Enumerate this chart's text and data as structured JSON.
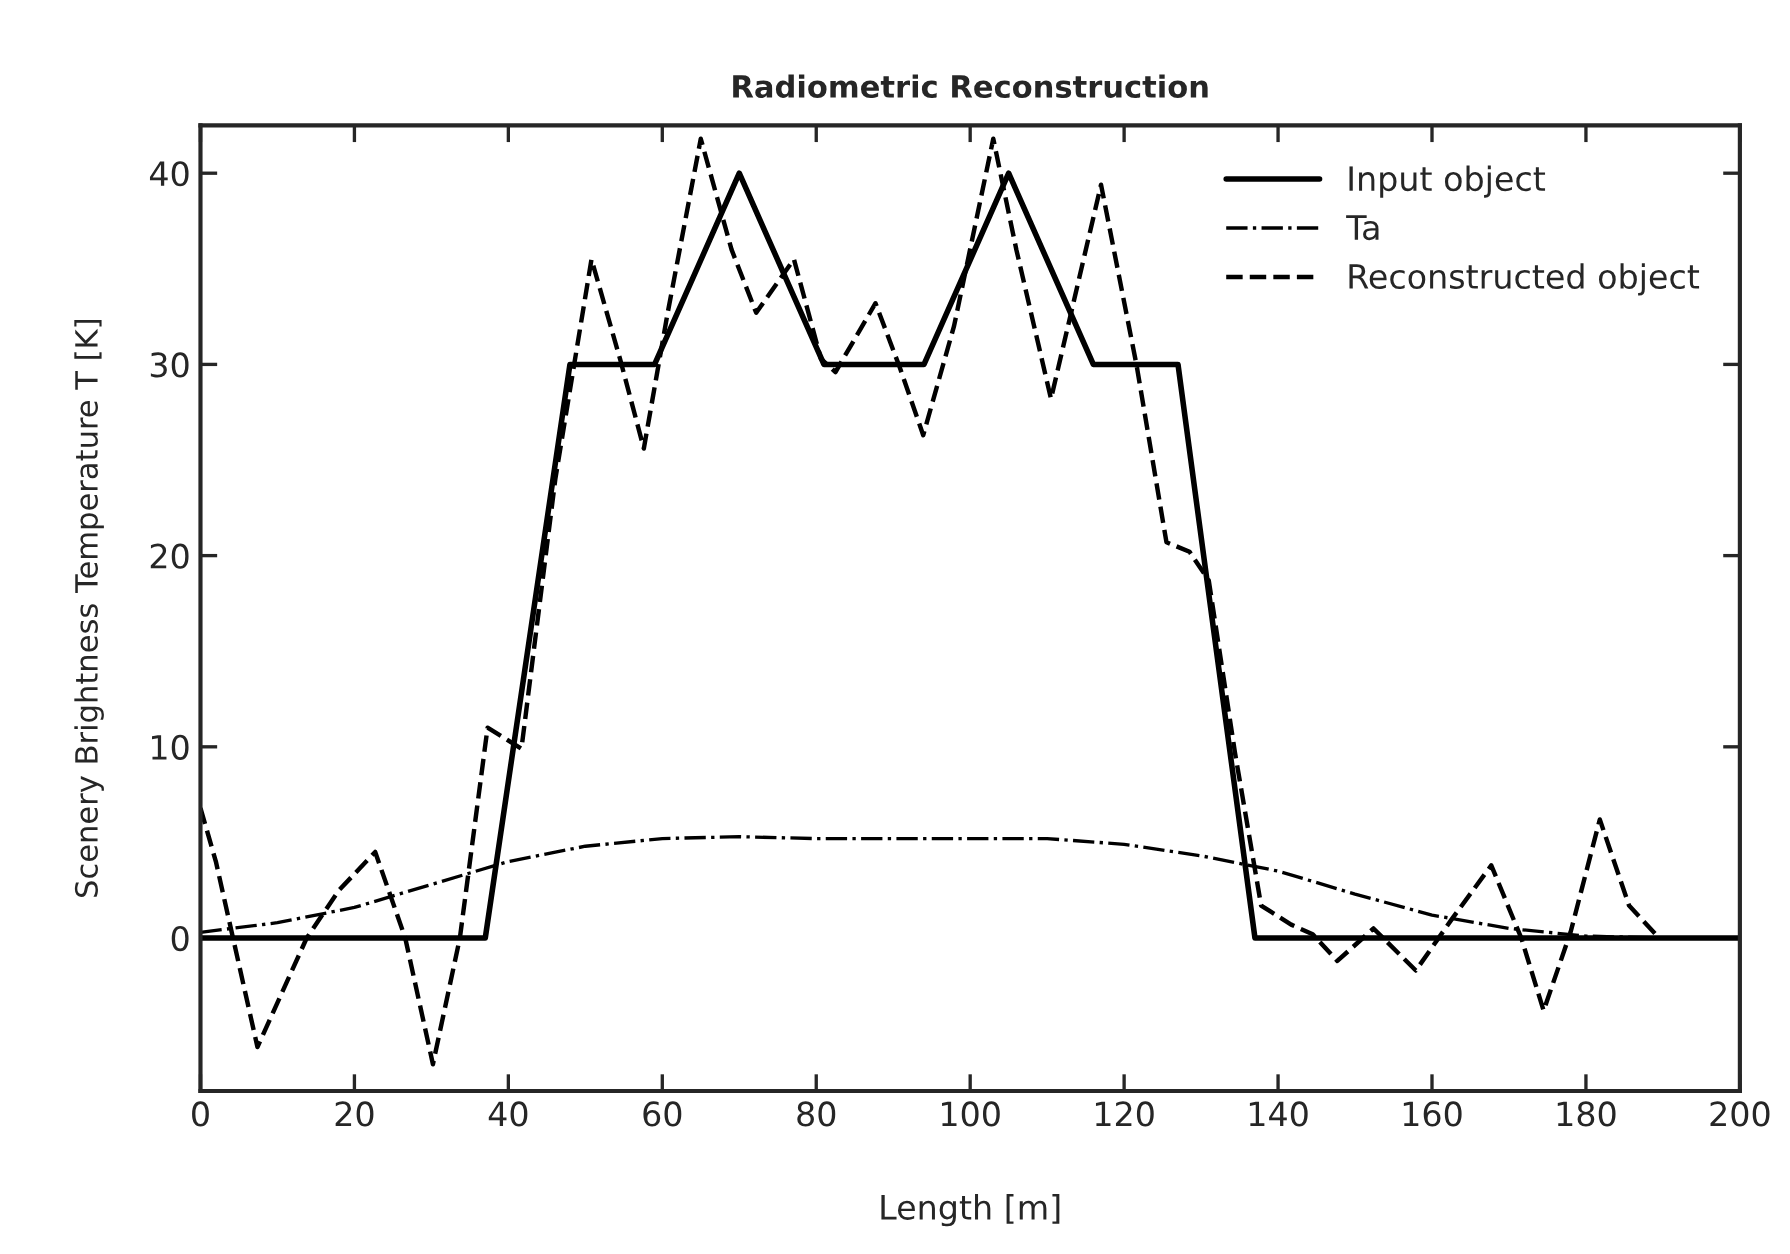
{
  "chart_data": {
    "type": "line",
    "title": "Radiometric Reconstruction",
    "xlabel": "Length [m]",
    "ylabel": "Scenery Brightness Temperature T [K]",
    "xlim": [
      0,
      200
    ],
    "xticks": [
      0,
      20,
      40,
      60,
      80,
      100,
      120,
      140,
      160,
      180,
      200
    ],
    "ylim": [
      -8,
      42.5
    ],
    "yticks": [
      0,
      10,
      20,
      30,
      40
    ],
    "grid": false,
    "legend": "top right",
    "marker": "none",
    "series": [
      {
        "name": "Input object",
        "color": "#000000",
        "line_style": "solid",
        "x": [
          0,
          37,
          48,
          59,
          70,
          81,
          94,
          105,
          116,
          127,
          137,
          200
        ],
        "values": [
          0,
          0,
          30,
          30,
          40,
          30,
          30,
          40,
          30,
          30,
          0,
          0
        ]
      },
      {
        "name": "Ta",
        "color": "#000000",
        "line_style": "dashdot",
        "x": [
          0,
          10,
          20,
          30,
          40,
          50,
          60,
          70,
          80,
          90,
          100,
          110,
          120,
          130,
          140,
          150,
          160,
          170,
          180,
          190,
          200
        ],
        "values": [
          0.3,
          0.8,
          1.6,
          2.8,
          4.0,
          4.8,
          5.2,
          5.3,
          5.2,
          5.2,
          5.2,
          5.2,
          4.9,
          4.3,
          3.5,
          2.3,
          1.2,
          0.5,
          0.1,
          0,
          0
        ]
      },
      {
        "name": "Reconstructed object",
        "color": "#000000",
        "line_style": "dashed",
        "x": [
          0,
          2,
          7.4,
          13.8,
          18,
          22.7,
          26.6,
          30.2,
          33.7,
          37.3,
          41.7,
          46.1,
          50.8,
          54.5,
          57.6,
          60.7,
          65,
          69,
          72.2,
          77.1,
          80.6,
          82.5,
          87.7,
          90.8,
          93.9,
          97.9,
          103,
          106,
          110.5,
          117,
          121.6,
          125.5,
          128.5,
          131,
          134.4,
          137.8,
          141.7,
          144.5,
          147.7,
          152.4,
          157.9,
          162.6,
          167.7,
          171.6,
          174.5,
          178,
          181.8,
          185.6,
          189.5
        ],
        "values": [
          6.8,
          4,
          -5.7,
          0,
          2.5,
          4.5,
          0,
          -6.6,
          0,
          11,
          9.9,
          24,
          35.5,
          30.3,
          25.6,
          32.7,
          41.8,
          36,
          32.7,
          35.5,
          30.3,
          29.6,
          33.2,
          29.9,
          26.3,
          32,
          41.8,
          36,
          28.2,
          39.4,
          30,
          20.7,
          20.2,
          18.7,
          9.7,
          1.7,
          0.7,
          0.2,
          -1.2,
          0.5,
          -1.7,
          1,
          3.8,
          0,
          -3.8,
          0.3,
          6.2,
          1.7,
          0
        ]
      }
    ]
  }
}
